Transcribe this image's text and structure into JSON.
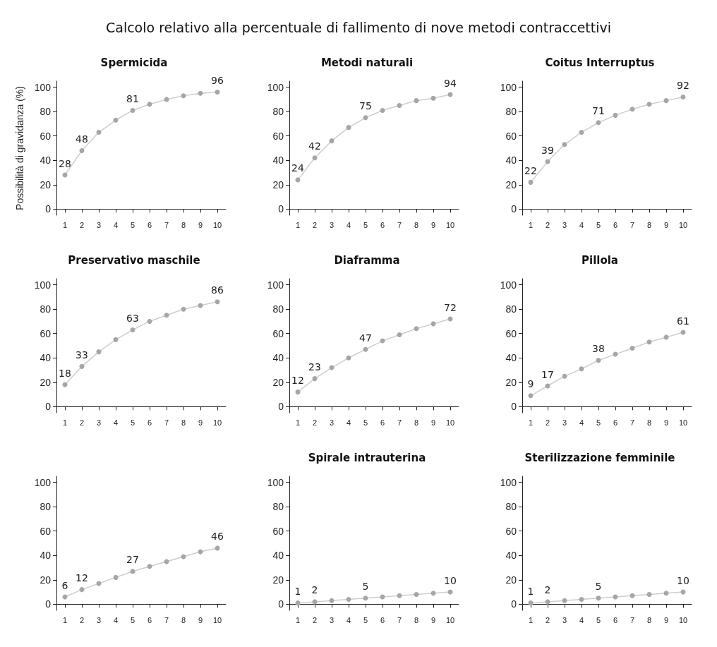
{
  "chart_data": [
    {
      "type": "line",
      "title": "Spermicida",
      "annotations": [
        "Calcolo relativo alla percentuale di fallimento di nove metodi contraccettivi"
      ],
      "ylabel": "Possibilità di gravidanza (%)",
      "x": [
        1,
        2,
        3,
        4,
        5,
        6,
        7,
        8,
        9,
        10
      ],
      "xlim": [
        0.5,
        10.5
      ],
      "xticks": [
        1,
        2,
        3,
        4,
        5,
        6,
        7,
        8,
        9,
        10
      ],
      "ylim": [
        -5,
        105
      ],
      "yticks": [
        0,
        20,
        40,
        60,
        80,
        100
      ],
      "marker": "circle",
      "series": [
        {
          "color": "#a6a6a6",
          "values": [
            28,
            48,
            63,
            73,
            81,
            86,
            90,
            93,
            95,
            96
          ],
          "value_labels": [
            "28",
            "48",
            null,
            null,
            "81",
            null,
            null,
            null,
            null,
            "96"
          ]
        }
      ]
    },
    {
      "type": "line",
      "title": "Metodi naturali",
      "x": [
        1,
        2,
        3,
        4,
        5,
        6,
        7,
        8,
        9,
        10
      ],
      "xlim": [
        0.5,
        10.5
      ],
      "xticks": [
        1,
        2,
        3,
        4,
        5,
        6,
        7,
        8,
        9,
        10
      ],
      "ylim": [
        -5,
        105
      ],
      "yticks": [
        0,
        20,
        40,
        60,
        80,
        100
      ],
      "marker": "circle",
      "series": [
        {
          "color": "#a6a6a6",
          "values": [
            24,
            42,
            56,
            67,
            75,
            81,
            85,
            89,
            91,
            94
          ],
          "value_labels": [
            "24",
            "42",
            null,
            null,
            "75",
            null,
            null,
            null,
            null,
            "94"
          ]
        }
      ]
    },
    {
      "type": "line",
      "title": "Coitus Interruptus",
      "x": [
        1,
        2,
        3,
        4,
        5,
        6,
        7,
        8,
        9,
        10
      ],
      "xlim": [
        0.5,
        10.5
      ],
      "xticks": [
        1,
        2,
        3,
        4,
        5,
        6,
        7,
        8,
        9,
        10
      ],
      "ylim": [
        -5,
        105
      ],
      "yticks": [
        0,
        20,
        40,
        60,
        80,
        100
      ],
      "marker": "circle",
      "series": [
        {
          "color": "#a6a6a6",
          "values": [
            22,
            39,
            53,
            63,
            71,
            77,
            82,
            86,
            89,
            92
          ],
          "value_labels": [
            "22",
            "39",
            null,
            null,
            "71",
            null,
            null,
            null,
            null,
            "92"
          ]
        }
      ]
    },
    {
      "type": "line",
      "title": "Preservativo maschile",
      "x": [
        1,
        2,
        3,
        4,
        5,
        6,
        7,
        8,
        9,
        10
      ],
      "xlim": [
        0.5,
        10.5
      ],
      "xticks": [
        1,
        2,
        3,
        4,
        5,
        6,
        7,
        8,
        9,
        10
      ],
      "ylim": [
        -5,
        105
      ],
      "yticks": [
        0,
        20,
        40,
        60,
        80,
        100
      ],
      "marker": "circle",
      "series": [
        {
          "color": "#a6a6a6",
          "values": [
            18,
            33,
            45,
            55,
            63,
            70,
            75,
            80,
            83,
            86
          ],
          "value_labels": [
            "18",
            "33",
            null,
            null,
            "63",
            null,
            null,
            null,
            null,
            "86"
          ]
        }
      ]
    },
    {
      "type": "line",
      "title": "Diaframma",
      "x": [
        1,
        2,
        3,
        4,
        5,
        6,
        7,
        8,
        9,
        10
      ],
      "xlim": [
        0.5,
        10.5
      ],
      "xticks": [
        1,
        2,
        3,
        4,
        5,
        6,
        7,
        8,
        9,
        10
      ],
      "ylim": [
        -5,
        105
      ],
      "yticks": [
        0,
        20,
        40,
        60,
        80,
        100
      ],
      "marker": "circle",
      "series": [
        {
          "color": "#a6a6a6",
          "values": [
            12,
            23,
            32,
            40,
            47,
            54,
            59,
            64,
            68,
            72
          ],
          "value_labels": [
            "12",
            "23",
            null,
            null,
            "47",
            null,
            null,
            null,
            null,
            "72"
          ]
        }
      ]
    },
    {
      "type": "line",
      "title": "Pillola",
      "x": [
        1,
        2,
        3,
        4,
        5,
        6,
        7,
        8,
        9,
        10
      ],
      "xlim": [
        0.5,
        10.5
      ],
      "xticks": [
        1,
        2,
        3,
        4,
        5,
        6,
        7,
        8,
        9,
        10
      ],
      "ylim": [
        -5,
        105
      ],
      "yticks": [
        0,
        20,
        40,
        60,
        80,
        100
      ],
      "marker": "circle",
      "series": [
        {
          "color": "#a6a6a6",
          "values": [
            9,
            17,
            25,
            31,
            38,
            43,
            48,
            53,
            57,
            61
          ],
          "value_labels": [
            "9",
            "17",
            null,
            null,
            "38",
            null,
            null,
            null,
            null,
            "61"
          ]
        }
      ]
    },
    {
      "type": "line",
      "x": [
        1,
        2,
        3,
        4,
        5,
        6,
        7,
        8,
        9,
        10
      ],
      "xlim": [
        0.5,
        10.5
      ],
      "xticks": [
        1,
        2,
        3,
        4,
        5,
        6,
        7,
        8,
        9,
        10
      ],
      "ylim": [
        -5,
        105
      ],
      "yticks": [
        0,
        20,
        40,
        60,
        80,
        100
      ],
      "marker": "circle",
      "series": [
        {
          "color": "#a6a6a6",
          "values": [
            6,
            12,
            17,
            22,
            27,
            31,
            35,
            39,
            43,
            46
          ],
          "value_labels": [
            "6",
            "12",
            null,
            null,
            "27",
            null,
            null,
            null,
            null,
            "46"
          ]
        }
      ]
    },
    {
      "type": "line",
      "title": "Spirale intrauterina",
      "x": [
        1,
        2,
        3,
        4,
        5,
        6,
        7,
        8,
        9,
        10
      ],
      "xlim": [
        0.5,
        10.5
      ],
      "xticks": [
        1,
        2,
        3,
        4,
        5,
        6,
        7,
        8,
        9,
        10
      ],
      "ylim": [
        -5,
        105
      ],
      "yticks": [
        0,
        20,
        40,
        60,
        80,
        100
      ],
      "marker": "circle",
      "series": [
        {
          "color": "#a6a6a6",
          "values": [
            1,
            2,
            3,
            4,
            5,
            6,
            7,
            8,
            9,
            10
          ],
          "value_labels": [
            "1",
            "2",
            null,
            null,
            "5",
            null,
            null,
            null,
            null,
            "10"
          ]
        }
      ]
    },
    {
      "type": "line",
      "title": "Sterilizzazione femminile",
      "x": [
        1,
        2,
        3,
        4,
        5,
        6,
        7,
        8,
        9,
        10
      ],
      "xlim": [
        0.5,
        10.5
      ],
      "xticks": [
        1,
        2,
        3,
        4,
        5,
        6,
        7,
        8,
        9,
        10
      ],
      "ylim": [
        -5,
        105
      ],
      "yticks": [
        0,
        20,
        40,
        60,
        80,
        100
      ],
      "marker": "circle",
      "series": [
        {
          "color": "#a6a6a6",
          "values": [
            1,
            2,
            3,
            4,
            5,
            6,
            7,
            8,
            9,
            10
          ],
          "value_labels": [
            "1",
            "2",
            null,
            null,
            "5",
            null,
            null,
            null,
            null,
            "10"
          ]
        }
      ]
    }
  ]
}
